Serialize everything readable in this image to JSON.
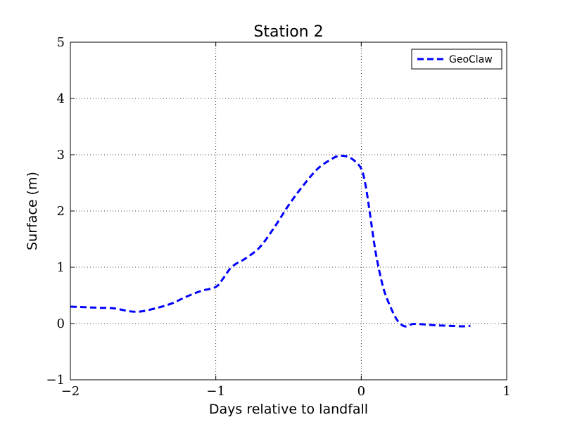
{
  "chart_data": {
    "type": "line",
    "title": "Station 2",
    "xlabel": "Days relative to landfall",
    "ylabel": "Surface (m)",
    "xlim": [
      -2,
      1
    ],
    "ylim": [
      -1,
      5
    ],
    "xticks": [
      -2,
      -1,
      0,
      1
    ],
    "xtick_labels": [
      "−2",
      "−1",
      "0",
      "1"
    ],
    "yticks": [
      -1,
      0,
      1,
      2,
      3,
      4,
      5
    ],
    "ytick_labels": [
      "−1",
      "0",
      "1",
      "2",
      "3",
      "4",
      "5"
    ],
    "grid": true,
    "legend_position": "top-right",
    "series": [
      {
        "name": "GeoClaw",
        "color": "#0000ff",
        "style": "dashed",
        "x": [
          -2.0,
          -1.9,
          -1.8,
          -1.7,
          -1.6,
          -1.55,
          -1.5,
          -1.4,
          -1.3,
          -1.2,
          -1.1,
          -1.0,
          -0.95,
          -0.9,
          -0.85,
          -0.8,
          -0.7,
          -0.6,
          -0.5,
          -0.4,
          -0.3,
          -0.2,
          -0.15,
          -0.1,
          -0.05,
          0.0,
          0.03,
          0.06,
          0.1,
          0.15,
          0.2,
          0.25,
          0.3,
          0.35,
          0.4,
          0.5,
          0.6,
          0.7,
          0.75
        ],
        "y": [
          0.3,
          0.29,
          0.28,
          0.27,
          0.22,
          0.21,
          0.22,
          0.28,
          0.36,
          0.48,
          0.58,
          0.65,
          0.8,
          0.98,
          1.08,
          1.15,
          1.35,
          1.7,
          2.1,
          2.45,
          2.75,
          2.93,
          2.98,
          2.97,
          2.9,
          2.75,
          2.45,
          1.95,
          1.25,
          0.65,
          0.3,
          0.05,
          -0.05,
          -0.01,
          -0.01,
          -0.03,
          -0.04,
          -0.05,
          -0.04
        ]
      }
    ]
  }
}
